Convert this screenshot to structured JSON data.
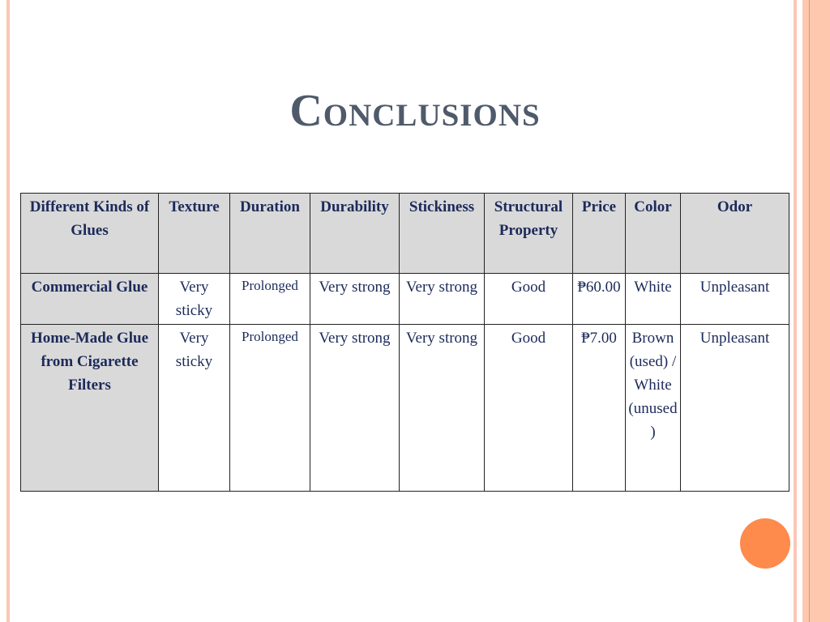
{
  "slide": {
    "title": "Conclusions",
    "colors": {
      "accent_circle": "#fe8a4b",
      "stripe": "#fdc7b0",
      "text": "#1c2a5a",
      "title": "#4f5a6b",
      "header_fill": "#d9d9d9"
    }
  },
  "table": {
    "headers": [
      "Different Kinds of Glues",
      "Texture",
      "Duration",
      "Durability",
      "Stickiness",
      "Structural Property",
      "Price",
      "Color",
      "Odor"
    ],
    "rows": [
      [
        "Commercial Glue",
        "Very sticky",
        "Prolonged",
        "Very strong",
        "Very strong",
        "Good",
        "₱60.00",
        "White",
        "Unpleasant"
      ],
      [
        "Home-Made Glue from Cigarette Filters",
        "Very sticky",
        "Prolonged",
        "Very strong",
        "Very strong",
        "Good",
        "₱7.00",
        "Brown (used) / White (unused)",
        "Unpleasant"
      ]
    ]
  }
}
